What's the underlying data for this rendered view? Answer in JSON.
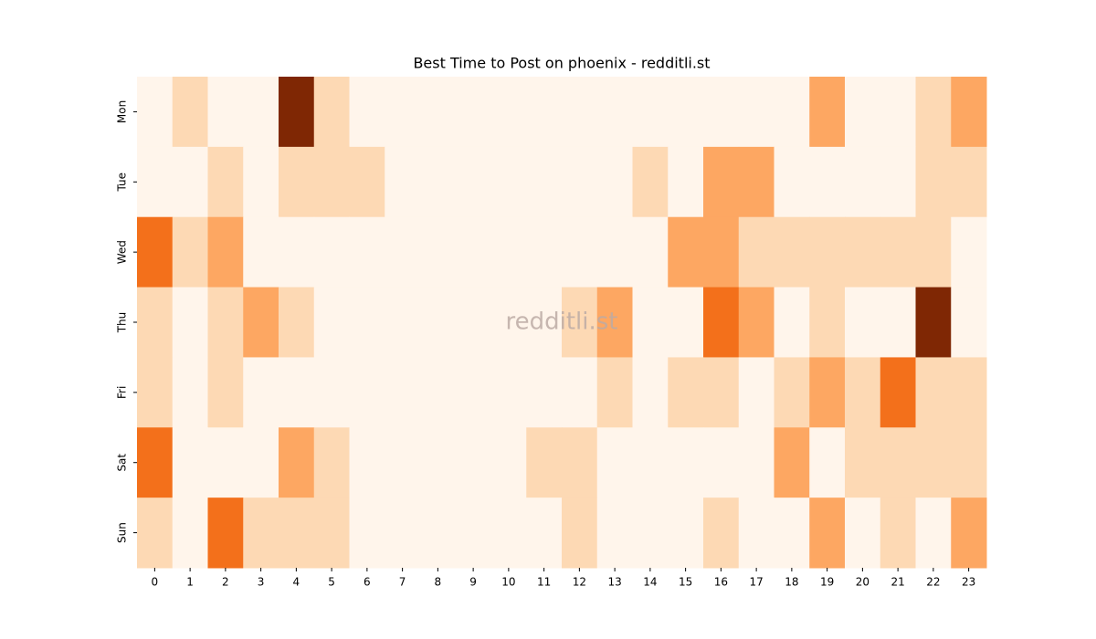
{
  "chart_data": {
    "type": "heatmap",
    "title": "Best Time to Post on phoenix - redditli.st",
    "watermark": "redditli.st",
    "x": [
      "0",
      "1",
      "2",
      "3",
      "4",
      "5",
      "6",
      "7",
      "8",
      "9",
      "10",
      "11",
      "12",
      "13",
      "14",
      "15",
      "16",
      "17",
      "18",
      "19",
      "20",
      "21",
      "22",
      "23"
    ],
    "y": [
      "Mon",
      "Tue",
      "Wed",
      "Thu",
      "Fri",
      "Sat",
      "Sun"
    ],
    "colormap": [
      "#fff5eb",
      "#fdd9b4",
      "#fda762",
      "#f3701b",
      "#7f2704"
    ],
    "values": [
      [
        0,
        1,
        0,
        0,
        4,
        1,
        0,
        0,
        0,
        0,
        0,
        0,
        0,
        0,
        0,
        0,
        0,
        0,
        0,
        2,
        0,
        0,
        1,
        2
      ],
      [
        0,
        0,
        1,
        0,
        1,
        1,
        1,
        0,
        0,
        0,
        0,
        0,
        0,
        0,
        1,
        0,
        2,
        2,
        0,
        0,
        0,
        0,
        1,
        1
      ],
      [
        3,
        1,
        2,
        0,
        0,
        0,
        0,
        0,
        0,
        0,
        0,
        0,
        0,
        0,
        0,
        2,
        2,
        1,
        1,
        1,
        1,
        1,
        1,
        0
      ],
      [
        1,
        0,
        1,
        2,
        1,
        0,
        0,
        0,
        0,
        0,
        0,
        0,
        1,
        2,
        0,
        0,
        3,
        2,
        0,
        1,
        0,
        0,
        4,
        0
      ],
      [
        1,
        0,
        1,
        0,
        0,
        0,
        0,
        0,
        0,
        0,
        0,
        0,
        0,
        1,
        0,
        1,
        1,
        0,
        1,
        2,
        1,
        3,
        1,
        1
      ],
      [
        3,
        0,
        0,
        0,
        2,
        1,
        0,
        0,
        0,
        0,
        0,
        1,
        1,
        0,
        0,
        0,
        0,
        0,
        2,
        0,
        1,
        1,
        1,
        1
      ],
      [
        1,
        0,
        3,
        1,
        1,
        1,
        0,
        0,
        0,
        0,
        0,
        0,
        1,
        0,
        0,
        0,
        1,
        0,
        0,
        2,
        0,
        1,
        0,
        2
      ]
    ]
  }
}
